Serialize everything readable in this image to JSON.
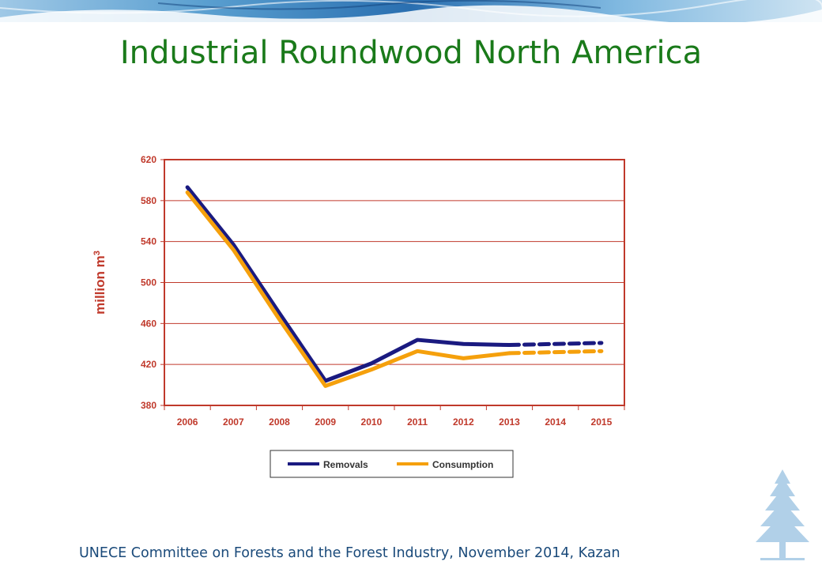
{
  "slide": {
    "title": "Industrial Roundwood North America",
    "footer": "UNECE Committee on Forests and the Forest Industry, November 2014, Kazan"
  },
  "colors": {
    "title": "#1a7a1a",
    "axis_and_grid": "#c0392b",
    "axis_labels": "#c0392b",
    "removals": "#1a1a80",
    "consumption": "#f5a00c",
    "footer": "#1a4a7a"
  },
  "icons": [
    "ocean-wave-banner",
    "tree-logo-icon"
  ],
  "chart_data": {
    "type": "line",
    "title": "",
    "xlabel": "",
    "ylabel_main": "million m",
    "ylabel_sup": "3",
    "categories": [
      "2006",
      "2007",
      "2008",
      "2009",
      "2010",
      "2011",
      "2012",
      "2013",
      "2014",
      "2015"
    ],
    "ylim": [
      380,
      620
    ],
    "yticks": [
      "380",
      "420",
      "460",
      "500",
      "540",
      "580",
      "620"
    ],
    "grid": true,
    "legend_position": "bottom-center",
    "forecast_from": "2013",
    "series": [
      {
        "name": "Removals",
        "values": [
          593,
          537,
          470,
          404,
          421,
          444,
          440,
          439,
          440,
          441
        ]
      },
      {
        "name": "Consumption",
        "values": [
          588,
          532,
          464,
          399,
          415,
          433,
          426,
          431,
          432,
          433
        ]
      }
    ]
  }
}
